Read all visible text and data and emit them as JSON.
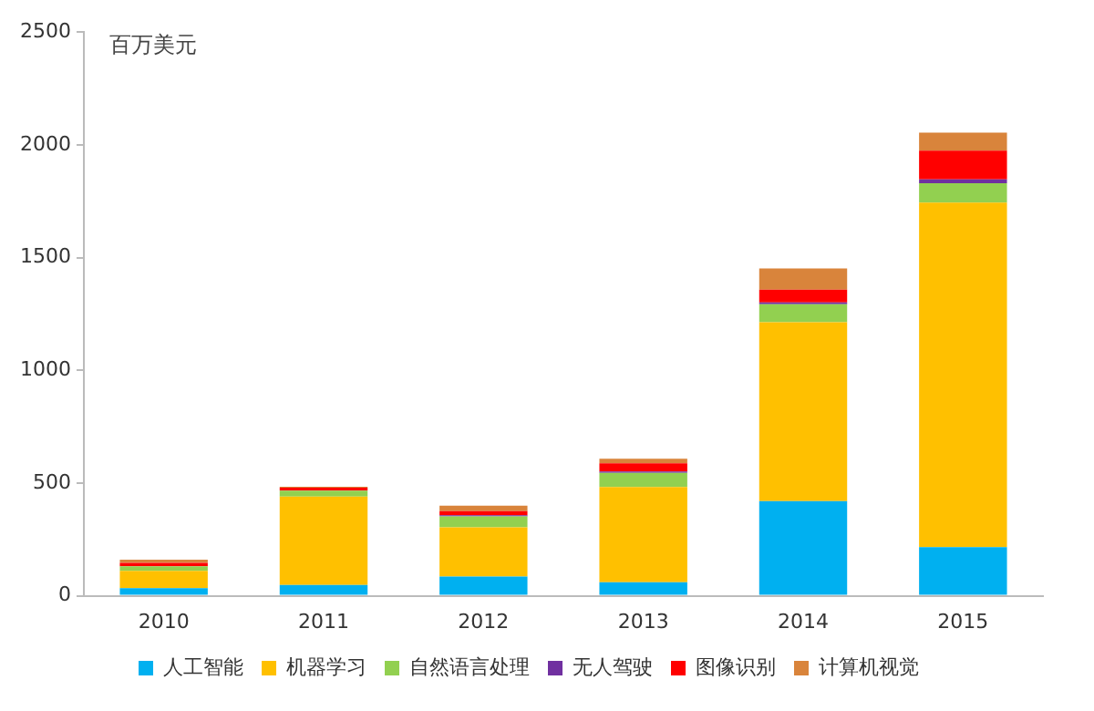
{
  "chart_data": {
    "type": "bar",
    "ylabel": "百万美元",
    "categories": [
      "2010",
      "2011",
      "2012",
      "2013",
      "2014",
      "2015"
    ],
    "stacked": true,
    "ylim": [
      0,
      2500
    ],
    "yticks": [
      0,
      500,
      1000,
      1500,
      2000,
      2500
    ],
    "grid": false,
    "legend": "bottom",
    "series": [
      {
        "name": "人工智能",
        "color": "#00b0f0",
        "values": [
          34,
          48,
          85,
          60,
          420,
          216
        ]
      },
      {
        "name": "机器学习",
        "color": "#ffc000",
        "values": [
          77,
          392,
          219,
          423,
          793,
          1528
        ]
      },
      {
        "name": "自然语言处理",
        "color": "#92d050",
        "values": [
          20,
          26,
          48,
          62,
          80,
          86
        ]
      },
      {
        "name": "无人驾驶",
        "color": "#7030a0",
        "values": [
          null,
          null,
          5,
          6,
          8,
          17
        ]
      },
      {
        "name": "图像识别",
        "color": "#ff0000",
        "values": [
          15,
          13,
          18,
          37,
          57,
          127
        ]
      },
      {
        "name": "计算机视觉",
        "color": "#d9843b",
        "values": [
          14,
          5,
          25,
          20,
          94,
          80
        ]
      }
    ]
  }
}
